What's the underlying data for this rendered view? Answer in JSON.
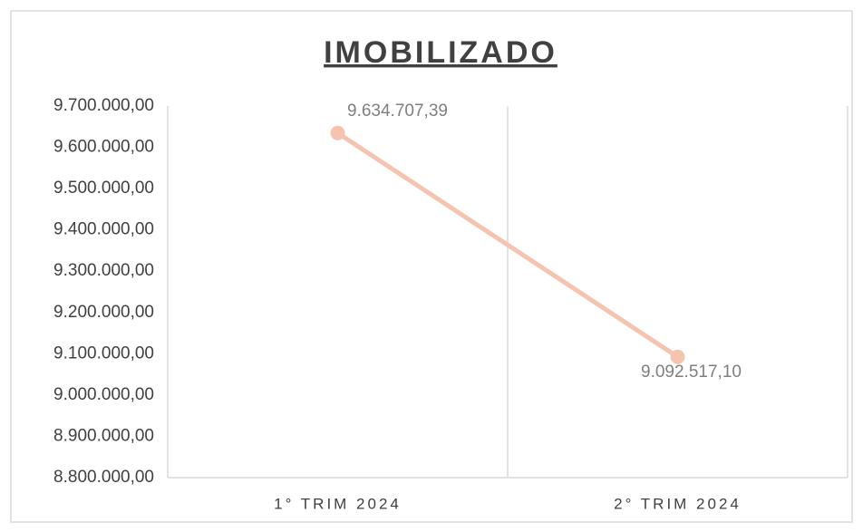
{
  "chart_data": {
    "type": "line",
    "title": "IMOBILIZADO",
    "categories": [
      "1° TRIM 2024",
      "2° TRIM 2024"
    ],
    "series": [
      {
        "color": "#f5c4b1",
        "values": [
          9634707.39,
          9092517.1
        ],
        "value_labels": [
          "9.634.707,39",
          "9.092.517,10"
        ]
      }
    ],
    "ylim": [
      8800000,
      9700000
    ],
    "yticks": [
      {
        "value": 8800000,
        "label": "8.800.000,00"
      },
      {
        "value": 8900000,
        "label": "8.900.000,00"
      },
      {
        "value": 9000000,
        "label": "9.000.000,00"
      },
      {
        "value": 9100000,
        "label": "9.100.000,00"
      },
      {
        "value": 9200000,
        "label": "9.200.000,00"
      },
      {
        "value": 9300000,
        "label": "9.300.000,00"
      },
      {
        "value": 9400000,
        "label": "9.400.000,00"
      },
      {
        "value": 9500000,
        "label": "9.500.000,00"
      },
      {
        "value": 9600000,
        "label": "9.600.000,00"
      },
      {
        "value": 9700000,
        "label": "9.700.000,00"
      }
    ],
    "grid": false
  }
}
